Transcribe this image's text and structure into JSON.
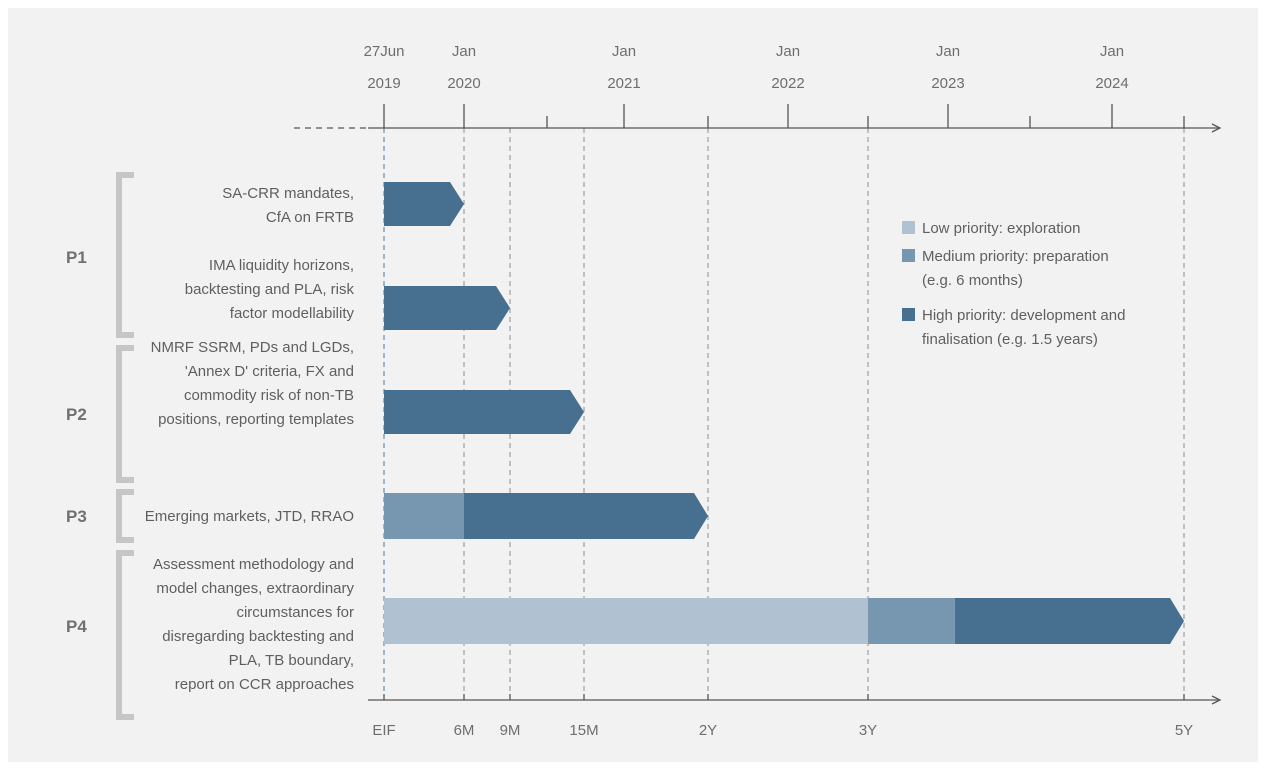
{
  "colors": {
    "low": "#b0c1d2",
    "medium": "#7796b0",
    "high": "#476f90",
    "axis": "#555555",
    "bracket": "#c6c6c6",
    "eif": "#4a7aa0"
  },
  "top_axis": {
    "ticks": [
      {
        "line1": "27Jun",
        "line2": "2019",
        "month": 0
      },
      {
        "line1": "Jan",
        "line2": "2020",
        "month": 6
      },
      {
        "line1": "Jan",
        "line2": "2021",
        "month": 18
      },
      {
        "line1": "Jan",
        "line2": "2022",
        "month": 30
      },
      {
        "line1": "Jan",
        "line2": "2023",
        "month": 42
      },
      {
        "line1": "Jan",
        "line2": "2024",
        "month": 54
      }
    ],
    "minor_months": [
      12,
      24,
      36,
      48,
      60
    ]
  },
  "milestones": [
    {
      "label": "EIF",
      "month": 0
    },
    {
      "label": "6M",
      "month": 6
    },
    {
      "label": "9M",
      "month": 9
    },
    {
      "label": "15M",
      "month": 15
    },
    {
      "label": "2Y",
      "month": 24
    },
    {
      "label": "3Y",
      "month": 36
    },
    {
      "label": "5Y",
      "month": 60
    }
  ],
  "groups": [
    {
      "name": "P1"
    },
    {
      "name": "P2"
    },
    {
      "name": "P3"
    },
    {
      "name": "P4"
    }
  ],
  "tasks": [
    {
      "lines": [
        "SA-CRR mandates,",
        "CfA on FRTB"
      ],
      "segments": [
        {
          "priority": "high",
          "start": 0,
          "end": 6
        }
      ]
    },
    {
      "lines": [
        "IMA liquidity horizons,",
        "backtesting and PLA, risk",
        "factor modellability"
      ],
      "segments": [
        {
          "priority": "high",
          "start": 0,
          "end": 9
        }
      ]
    },
    {
      "lines": [
        "NMRF SSRM, PDs and LGDs,",
        "'Annex D' criteria, FX and",
        "commodity risk of non-TB",
        "positions, reporting templates"
      ],
      "segments": [
        {
          "priority": "high",
          "start": 0,
          "end": 15
        }
      ]
    },
    {
      "lines": [
        "Emerging markets, JTD, RRAO"
      ],
      "segments": [
        {
          "priority": "medium",
          "start": 0,
          "end": 6
        },
        {
          "priority": "high",
          "start": 6,
          "end": 24
        }
      ]
    },
    {
      "lines": [
        "Assessment methodology and",
        "model changes, extraordinary",
        "circumstances for",
        "disregarding backtesting and",
        "PLA, TB boundary,",
        "report on CCR approaches"
      ],
      "segments": [
        {
          "priority": "low",
          "start": 0,
          "end": 36
        },
        {
          "priority": "medium",
          "start": 36,
          "end": 42.5
        },
        {
          "priority": "high",
          "start": 42.5,
          "end": 60
        }
      ]
    }
  ],
  "legend": [
    {
      "priority": "low",
      "lines": [
        "Low priority: exploration"
      ]
    },
    {
      "priority": "medium",
      "lines": [
        "Medium priority: preparation",
        "(e.g. 6 months)"
      ]
    },
    {
      "priority": "high",
      "lines": [
        "High priority: development and",
        "finalisation (e.g. 1.5 years)"
      ]
    }
  ]
}
